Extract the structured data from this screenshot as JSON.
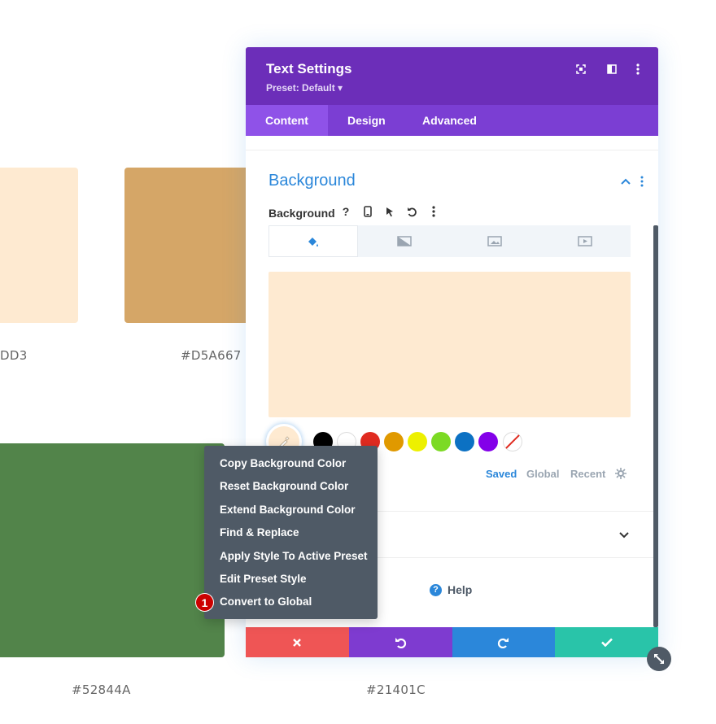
{
  "swatches": [
    {
      "label": "DD3",
      "color": "#FEEAD1"
    },
    {
      "label": "#D5A667",
      "color": "#D5A667"
    },
    {
      "label": "#52844A",
      "color": "#52844A"
    },
    {
      "label": "#21401C",
      "color": "#21401C"
    }
  ],
  "panel": {
    "title": "Text Settings",
    "preset": "Preset: Default ▾",
    "tabs": [
      "Content",
      "Design",
      "Advanced"
    ],
    "active_tab": "Content",
    "section_title": "Background",
    "background_label": "Background",
    "background_tabs": [
      "color-tab",
      "gradient-tab",
      "image-tab",
      "video-tab"
    ],
    "preview_color": "#FEEAD1",
    "palette_colors": [
      "#000000",
      "#FFFFFF",
      "#E02B20",
      "#E09900",
      "#EDF000",
      "#7CDA24",
      "#0C71C3",
      "#8300E9"
    ],
    "palette_tabs": [
      "Saved",
      "Global",
      "Recent"
    ],
    "active_palette_tab": "Saved",
    "help_label": "Help"
  },
  "context_menu": {
    "items": [
      "Copy Background Color",
      "Reset Background Color",
      "Extend Background Color",
      "Find & Replace",
      "Apply Style To Active Preset",
      "Edit Preset Style",
      "Convert to Global"
    ],
    "badge": "1"
  },
  "footer": {
    "colors": {
      "cancel": "#EF5555",
      "undo": "#7E3BD0",
      "redo": "#2B87DA",
      "save": "#29C4A9"
    }
  },
  "accent": {
    "purple": "#6C2EB9",
    "blue": "#2B87DA",
    "dark": "#4F5A66"
  }
}
